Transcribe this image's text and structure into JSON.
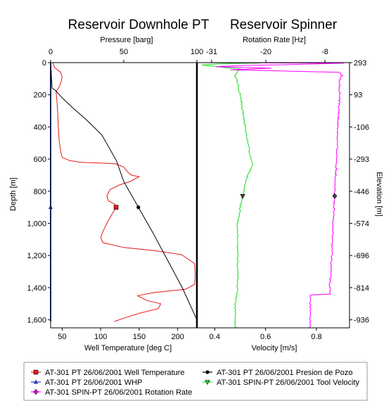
{
  "colors": {
    "well_temperature": "#e31a1c",
    "whp": "#1f3fb4",
    "rotation_rate": "#ff00ff",
    "pressure": "#000000",
    "tool_velocity": "#22dd22"
  },
  "chart_data": [
    {
      "type": "line",
      "title": "Reservoir Downhole PT",
      "y_axis": {
        "label": "Depth [m]",
        "range": [
          0,
          1650
        ],
        "inverted": true,
        "ticks": [
          "0",
          "200",
          "400",
          "600",
          "800",
          "1,000",
          "1,200",
          "1,400",
          "1,600"
        ],
        "tick_values": [
          0,
          200,
          400,
          600,
          800,
          1000,
          1200,
          1400,
          1600
        ]
      },
      "x_top_axis": {
        "label": "Pressure [barg]",
        "range": [
          0,
          100
        ],
        "ticks": [
          "0",
          "50",
          "100"
        ],
        "tick_values": [
          0,
          50,
          100
        ]
      },
      "x_bottom_axis": {
        "label": "Well Temperature [deg C]",
        "range": [
          35,
          225
        ],
        "ticks": [
          "50",
          "100",
          "150",
          "200"
        ],
        "tick_values": [
          50,
          100,
          150,
          200
        ]
      },
      "series": [
        {
          "name": "AT-301 PT 26/06/2001 Well Temperature",
          "axis": "x_bottom",
          "marker": "square",
          "marker_at": [
            120,
            900
          ],
          "points": [
            [
              38,
              0
            ],
            [
              40,
              30
            ],
            [
              48,
              60
            ],
            [
              50,
              90
            ],
            [
              48,
              130
            ],
            [
              45,
              160
            ],
            [
              42,
              180
            ],
            [
              43,
              230
            ],
            [
              44,
              300
            ],
            [
              45,
              400
            ],
            [
              46,
              480
            ],
            [
              48,
              550
            ],
            [
              50,
              590
            ],
            [
              60,
              610
            ],
            [
              75,
              620
            ],
            [
              100,
              625
            ],
            [
              120,
              630
            ],
            [
              130,
              650
            ],
            [
              135,
              680
            ],
            [
              140,
              700
            ],
            [
              145,
              705
            ],
            [
              150,
              710
            ],
            [
              138,
              740
            ],
            [
              125,
              760
            ],
            [
              112,
              790
            ],
            [
              108,
              830
            ],
            [
              110,
              860
            ],
            [
              118,
              880
            ],
            [
              120,
              900
            ],
            [
              115,
              940
            ],
            [
              108,
              1000
            ],
            [
              103,
              1050
            ],
            [
              100,
              1090
            ],
            [
              103,
              1120
            ],
            [
              130,
              1150
            ],
            [
              170,
              1170
            ],
            [
              205,
              1195
            ],
            [
              222,
              1250
            ],
            [
              223,
              1320
            ],
            [
              222,
              1380
            ],
            [
              210,
              1410
            ],
            [
              170,
              1430
            ],
            [
              148,
              1450
            ],
            [
              160,
              1480
            ],
            [
              178,
              1500
            ],
            [
              175,
              1530
            ],
            [
              150,
              1560
            ],
            [
              130,
              1590
            ],
            [
              118,
              1610
            ]
          ]
        },
        {
          "name": "AT-301 PT 26/06/2001 WHP",
          "axis": "x_top",
          "marker": "triangle",
          "marker_at": [
            0,
            900
          ],
          "points": [
            [
              0,
              0
            ],
            [
              0,
              1610
            ]
          ]
        },
        {
          "name": "AT-301 PT 26/06/2001 Presion de Pozo",
          "axis": "x_top",
          "marker": "circle",
          "marker_at": [
            60,
            900
          ],
          "points": [
            [
              0,
              0
            ],
            [
              1,
              160
            ],
            [
              3,
              170
            ],
            [
              8,
              220
            ],
            [
              15,
              280
            ],
            [
              25,
              360
            ],
            [
              35,
              450
            ],
            [
              45,
              610
            ],
            [
              50,
              740
            ],
            [
              55,
              820
            ],
            [
              60,
              900
            ],
            [
              70,
              1060
            ],
            [
              80,
              1230
            ],
            [
              90,
              1400
            ],
            [
              100,
              1600
            ]
          ]
        }
      ]
    },
    {
      "type": "line",
      "title": "Reservoir Spinner",
      "y_right_axis": {
        "label": "Elevation [m]",
        "ticks": [
          "293",
          "93",
          "-106",
          "-293",
          "-446",
          "-574",
          "-696",
          "-814",
          "-936"
        ],
        "tick_depths": [
          0,
          200,
          400,
          600,
          800,
          1000,
          1200,
          1400,
          1600
        ]
      },
      "x_top_axis": {
        "label": "Rotation Rate [Hz]",
        "range": [
          -34,
          -3
        ],
        "ticks": [
          "-31",
          "-20",
          "-8"
        ],
        "tick_values": [
          -31,
          -20,
          -8
        ]
      },
      "x_bottom_axis": {
        "label": "Velocity [m/s]",
        "range": [
          0.33,
          0.93
        ],
        "ticks": [
          "0.4",
          "0.6",
          "0.8"
        ],
        "tick_values": [
          0.4,
          0.6,
          0.8
        ]
      },
      "series": [
        {
          "name": "AT-301 SPIN-PT 26/06/2001 Tool Velocity",
          "axis": "x_bottom",
          "marker": "triangle-down",
          "marker_at": [
            0.51,
            830
          ],
          "points": [
            [
              0.34,
              0
            ],
            [
              0.58,
              3
            ],
            [
              0.42,
              8
            ],
            [
              0.35,
              15
            ],
            [
              0.5,
              40
            ],
            [
              0.48,
              80
            ],
            [
              0.49,
              120
            ],
            [
              0.5,
              200
            ],
            [
              0.51,
              300
            ],
            [
              0.52,
              400
            ],
            [
              0.53,
              500
            ],
            [
              0.54,
              580
            ],
            [
              0.55,
              640
            ],
            [
              0.53,
              700
            ],
            [
              0.52,
              760
            ],
            [
              0.51,
              830
            ],
            [
              0.5,
              900
            ],
            [
              0.49,
              1000
            ],
            [
              0.49,
              1100
            ],
            [
              0.49,
              1200
            ],
            [
              0.49,
              1300
            ],
            [
              0.49,
              1400
            ],
            [
              0.48,
              1500
            ],
            [
              0.48,
              1600
            ],
            [
              0.48,
              1650
            ]
          ]
        },
        {
          "name": "AT-301 SPIN-PT 26/06/2001 Rotation Rate",
          "axis": "x_top",
          "marker": "diamond",
          "marker_at": [
            -6,
            830
          ],
          "points": [
            [
              -33,
              0
            ],
            [
              -4,
              3
            ],
            [
              -15,
              12
            ],
            [
              -25,
              18
            ],
            [
              -30,
              25
            ],
            [
              -19,
              35
            ],
            [
              -27,
              45
            ],
            [
              -5,
              60
            ],
            [
              -4.5,
              80
            ],
            [
              -5,
              100
            ],
            [
              -5,
              200
            ],
            [
              -5.2,
              300
            ],
            [
              -5.4,
              400
            ],
            [
              -5.5,
              500
            ],
            [
              -5.6,
              600
            ],
            [
              -5.8,
              700
            ],
            [
              -6,
              800
            ],
            [
              -6.2,
              900
            ],
            [
              -6.3,
              1000
            ],
            [
              -6.5,
              1100
            ],
            [
              -6.6,
              1200
            ],
            [
              -6.8,
              1300
            ],
            [
              -7,
              1390
            ],
            [
              -7,
              1440
            ],
            [
              -11,
              1445
            ],
            [
              -11,
              1500
            ],
            [
              -11,
              1600
            ],
            [
              -11,
              1650
            ]
          ]
        }
      ]
    }
  ]
}
